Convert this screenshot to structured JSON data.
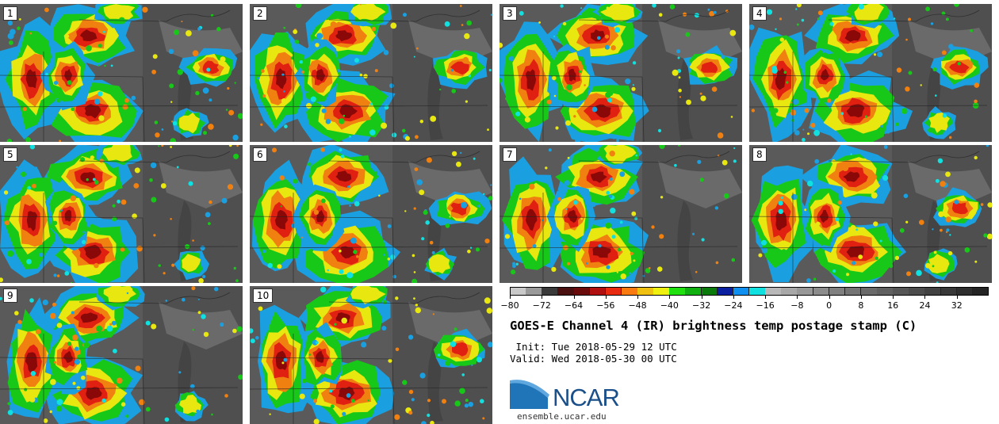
{
  "title": "GOES-E Channel 4 (IR) brightness temp postage stamp (C)",
  "init_line": " Init: Tue 2018-05-29 12 UTC",
  "valid_line": "Valid: Wed 2018-05-30 00 UTC",
  "logo": {
    "name": "NCAR",
    "url": "ensemble.ucar.edu",
    "color": "#1a4f8a"
  },
  "panels": [
    {
      "label": "1"
    },
    {
      "label": "2"
    },
    {
      "label": "3"
    },
    {
      "label": "4"
    },
    {
      "label": "5"
    },
    {
      "label": "6"
    },
    {
      "label": "7"
    },
    {
      "label": "8"
    },
    {
      "label": "9"
    },
    {
      "label": "10"
    }
  ],
  "colorbar": {
    "min": -80,
    "max": 40,
    "units": "C",
    "ticks": [
      "−80",
      "−72",
      "−64",
      "−56",
      "−48",
      "−40",
      "−32",
      "−24",
      "−16",
      "−8",
      "0",
      "8",
      "16",
      "24",
      "32"
    ],
    "colors": [
      "#c9c9c9",
      "#9a9a9a",
      "#3a3a3a",
      "#4a1010",
      "#6b0a0a",
      "#b01010",
      "#e82a10",
      "#f87a10",
      "#f0c010",
      "#f0f010",
      "#20e010",
      "#10b010",
      "#0a7a0a",
      "#0a20a0",
      "#1090f0",
      "#10e0e0",
      "#b8b8b8",
      "#a8a8a8",
      "#989898",
      "#8c8c8c",
      "#808080",
      "#747474",
      "#6a6a6a",
      "#606060",
      "#565656",
      "#4c4c4c",
      "#424242",
      "#383838",
      "#2e2e2e",
      "#242424"
    ]
  }
}
